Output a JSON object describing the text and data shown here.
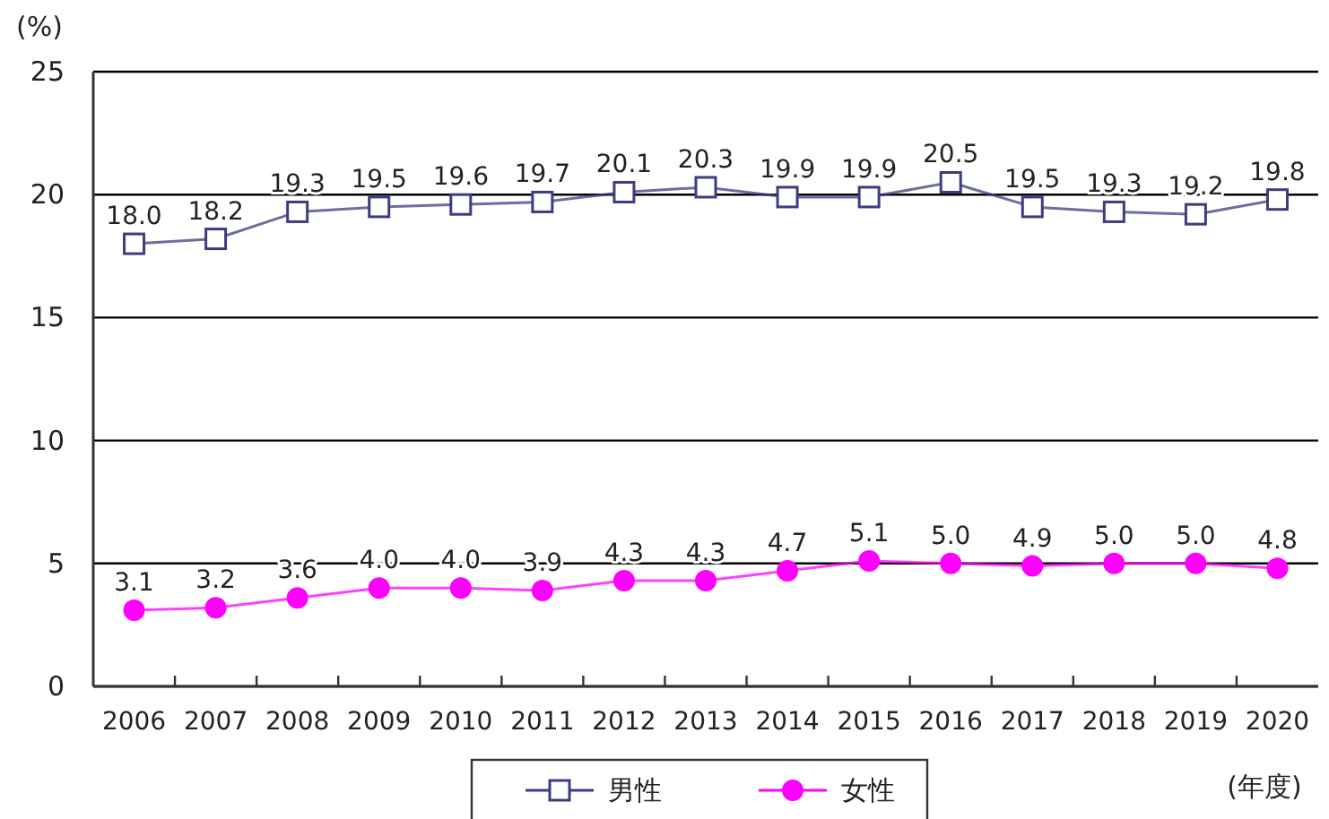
{
  "chart_data": {
    "type": "line",
    "categories": [
      "2006",
      "2007",
      "2008",
      "2009",
      "2010",
      "2011",
      "2012",
      "2013",
      "2014",
      "2015",
      "2016",
      "2017",
      "2018",
      "2019",
      "2020"
    ],
    "series": [
      {
        "name": "男性",
        "color": "#3c3c80",
        "marker": "square",
        "values": [
          18.0,
          18.2,
          19.3,
          19.5,
          19.6,
          19.7,
          20.1,
          20.3,
          19.9,
          19.9,
          20.5,
          19.5,
          19.3,
          19.2,
          19.8
        ],
        "value_labels": [
          "18.0",
          "18.2",
          "19.3",
          "19.5",
          "19.6",
          "19.7",
          "20.1",
          "20.3",
          "19.9",
          "19.9",
          "20.5",
          "19.5",
          "19.3",
          "19.2",
          "19.8"
        ]
      },
      {
        "name": "女性",
        "color": "#ff00ff",
        "marker": "circle",
        "values": [
          3.1,
          3.2,
          3.6,
          4.0,
          4.0,
          3.9,
          4.3,
          4.3,
          4.7,
          5.1,
          5.0,
          4.9,
          5.0,
          5.0,
          4.8
        ],
        "value_labels": [
          "3.1",
          "3.2",
          "3.6",
          "4.0",
          "4.0",
          "3.9",
          "4.3",
          "4.3",
          "4.7",
          "5.1",
          "5.0",
          "4.9",
          "5.0",
          "5.0",
          "4.8"
        ]
      }
    ],
    "ylabel": "(%)",
    "xlabel": "(年度)",
    "ylim": [
      0,
      25
    ],
    "yticks": [
      0,
      5,
      10,
      15,
      20,
      25
    ],
    "grid": "y",
    "legend": "bottom"
  }
}
